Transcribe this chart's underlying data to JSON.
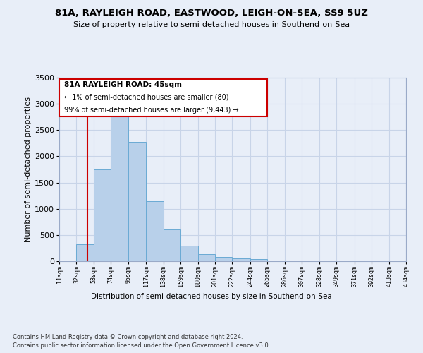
{
  "title": "81A, RAYLEIGH ROAD, EASTWOOD, LEIGH-ON-SEA, SS9 5UZ",
  "subtitle": "Size of property relative to semi-detached houses in Southend-on-Sea",
  "xlabel": "Distribution of semi-detached houses by size in Southend-on-Sea",
  "ylabel": "Number of semi-detached properties",
  "footnote1": "Contains HM Land Registry data © Crown copyright and database right 2024.",
  "footnote2": "Contains public sector information licensed under the Open Government Licence v3.0.",
  "property_label": "81A RAYLEIGH ROAD: 45sqm",
  "smaller_text": "← 1% of semi-detached houses are smaller (80)",
  "larger_text": "99% of semi-detached houses are larger (9,443) →",
  "property_size": 45,
  "bin_edges": [
    11,
    32,
    53,
    74,
    95,
    117,
    138,
    159,
    180,
    201,
    222,
    244,
    265,
    286,
    307,
    328,
    349,
    371,
    392,
    413,
    434
  ],
  "bin_labels": [
    "11sqm",
    "32sqm",
    "53sqm",
    "74sqm",
    "95sqm",
    "117sqm",
    "138sqm",
    "159sqm",
    "180sqm",
    "201sqm",
    "222sqm",
    "244sqm",
    "265sqm",
    "286sqm",
    "307sqm",
    "328sqm",
    "349sqm",
    "371sqm",
    "392sqm",
    "413sqm",
    "434sqm"
  ],
  "counts": [
    5,
    320,
    1750,
    2920,
    2270,
    1150,
    600,
    300,
    140,
    75,
    50,
    45,
    5,
    0,
    0,
    0,
    0,
    0,
    0,
    0
  ],
  "bar_color": "#b8d0ea",
  "bar_edge_color": "#6aaad4",
  "grid_color": "#c8d4e8",
  "background_color": "#e8eef8",
  "red_line_color": "#cc0000",
  "ylim": [
    0,
    3500
  ],
  "yticks": [
    0,
    500,
    1000,
    1500,
    2000,
    2500,
    3000,
    3500
  ]
}
